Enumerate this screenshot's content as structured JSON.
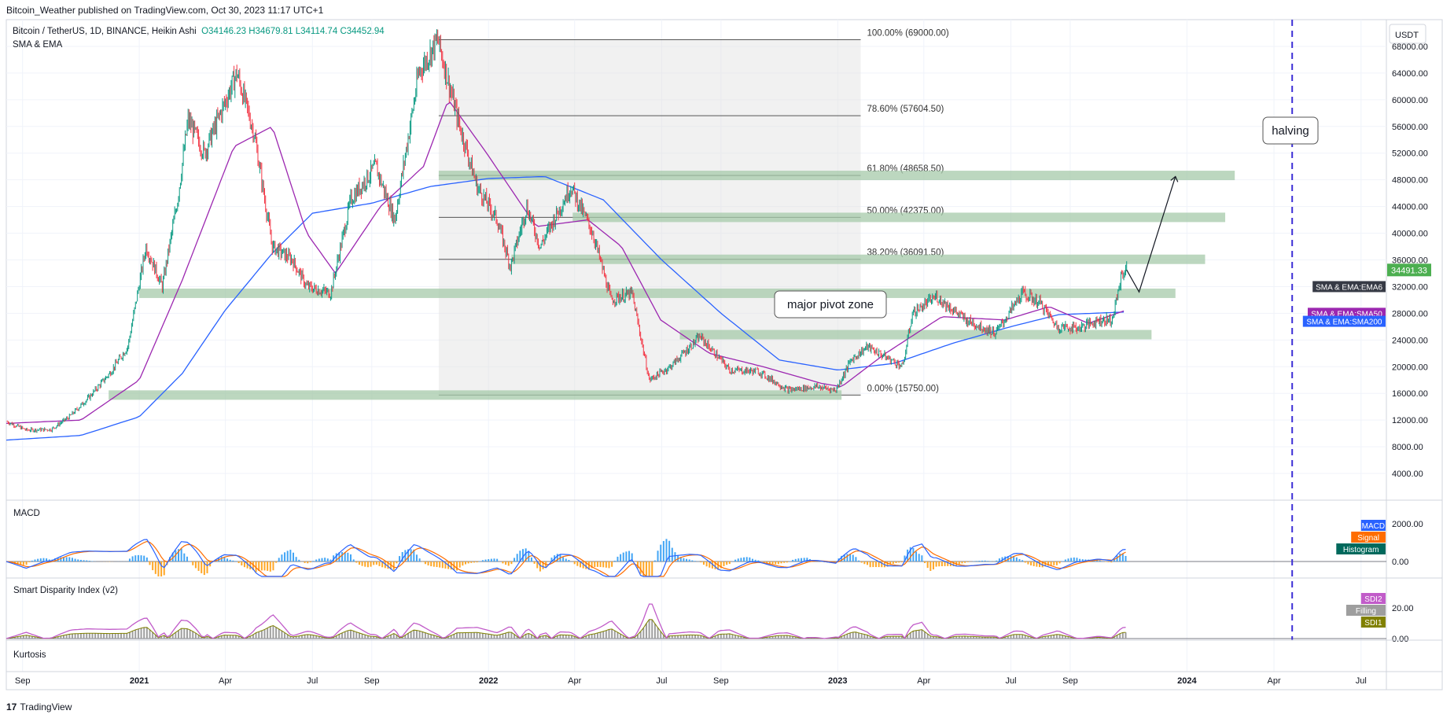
{
  "publisher_line": "Bitcoin_Weather published on TradingView.com, Oct 30, 2023 11:17 UTC+1",
  "legend": {
    "symbol": "Bitcoin / TetherUS, 1D, BINANCE, Heikin Ashi",
    "open": "O34146.23",
    "high": "H34679.81",
    "low": "L34114.74",
    "close": "C34452.94",
    "indicator": "SMA & EMA"
  },
  "currency": "USDT",
  "footer_brand": "TradingView",
  "colors": {
    "up": "#089981",
    "down": "#f23645",
    "sma50": "#9c27b0",
    "sma200": "#2962ff",
    "zone": "#a5c9a9",
    "halving_line": "#3d2fd6",
    "macd": "#2962ff",
    "signal": "#ff6d00",
    "sdi2": "#c15cc9",
    "sdi1": "#808000"
  },
  "chart_data": [
    {
      "type": "line",
      "panel": "price",
      "ylim": [
        0,
        72000
      ],
      "y_ticks": [
        "68000.00",
        "64000.00",
        "60000.00",
        "56000.00",
        "52000.00",
        "48000.00",
        "44000.00",
        "40000.00",
        "36000.00",
        "32000.00",
        "28000.00",
        "24000.00",
        "20000.00",
        "16000.00",
        "12000.00",
        "8000.00",
        "4000.00"
      ],
      "x_ticks": [
        "Sep",
        "2021",
        "Apr",
        "Jul",
        "Sep",
        "2022",
        "Apr",
        "Jul",
        "Sep",
        "2023",
        "Apr",
        "Jul",
        "Sep",
        "2024",
        "Apr",
        "Jul"
      ],
      "x_range": [
        "2020-08-15",
        "2024-07-25"
      ],
      "series": [
        {
          "name": "BTCUSDT",
          "x": [
            "2020-08-15",
            "2020-09-05",
            "2020-10-01",
            "2020-10-20",
            "2020-11-10",
            "2020-12-01",
            "2020-12-20",
            "2021-01-08",
            "2021-01-25",
            "2021-02-10",
            "2021-02-21",
            "2021-03-10",
            "2021-04-13",
            "2021-05-01",
            "2021-05-20",
            "2021-06-10",
            "2021-06-25",
            "2021-07-20",
            "2021-08-10",
            "2021-09-05",
            "2021-09-25",
            "2021-10-20",
            "2021-11-09",
            "2021-11-30",
            "2021-12-20",
            "2022-01-10",
            "2022-01-24",
            "2022-02-10",
            "2022-02-24",
            "2022-03-28",
            "2022-04-20",
            "2022-05-09",
            "2022-05-31",
            "2022-06-18",
            "2022-07-10",
            "2022-08-10",
            "2022-09-10",
            "2022-10-10",
            "2022-11-10",
            "2022-12-10",
            "2022-12-30",
            "2023-01-15",
            "2023-02-01",
            "2023-03-10",
            "2023-03-20",
            "2023-04-14",
            "2023-05-15",
            "2023-06-15",
            "2023-07-13",
            "2023-08-01",
            "2023-08-18",
            "2023-09-10",
            "2023-10-01",
            "2023-10-15",
            "2023-10-25",
            "2023-10-30"
          ],
          "values": [
            11800,
            10500,
            10600,
            12500,
            15500,
            19000,
            23000,
            38000,
            32000,
            45000,
            57000,
            52000,
            64000,
            55000,
            38000,
            36000,
            32000,
            31000,
            45000,
            50000,
            42000,
            64000,
            69000,
            57000,
            47000,
            42000,
            35000,
            44000,
            38000,
            47000,
            40000,
            30000,
            31000,
            18000,
            20000,
            24500,
            19500,
            19300,
            16500,
            17000,
            16500,
            21000,
            23000,
            20000,
            28000,
            30500,
            27000,
            25000,
            31000,
            29500,
            26000,
            25800,
            27000,
            27000,
            34000,
            34452
          ]
        },
        {
          "name": "SMA & EMA:SMA50",
          "x": [
            "2020-08-15",
            "2020-11-01",
            "2021-01-01",
            "2021-02-15",
            "2021-04-10",
            "2021-05-20",
            "2021-06-25",
            "2021-07-25",
            "2021-09-10",
            "2021-10-25",
            "2021-11-20",
            "2021-12-30",
            "2022-02-20",
            "2022-04-15",
            "2022-05-20",
            "2022-06-30",
            "2022-08-20",
            "2022-10-15",
            "2022-12-15",
            "2023-01-05",
            "2023-02-20",
            "2023-04-20",
            "2023-06-25",
            "2023-08-10",
            "2023-09-20",
            "2023-10-30"
          ],
          "values": [
            11500,
            12000,
            18000,
            33000,
            53000,
            56000,
            40000,
            34000,
            44000,
            50000,
            60000,
            52000,
            41000,
            42000,
            38000,
            27000,
            22000,
            20000,
            17500,
            17000,
            22000,
            27500,
            27000,
            29000,
            26500,
            28500
          ]
        },
        {
          "name": "SMA & EMA:SMA200",
          "x": [
            "2020-08-15",
            "2020-11-01",
            "2021-01-01",
            "2021-02-15",
            "2021-04-01",
            "2021-05-20",
            "2021-07-01",
            "2021-09-01",
            "2021-11-01",
            "2022-01-01",
            "2022-03-01",
            "2022-05-01",
            "2022-07-01",
            "2022-09-01",
            "2022-11-01",
            "2023-01-01",
            "2023-03-01",
            "2023-05-01",
            "2023-07-01",
            "2023-08-20",
            "2023-10-30"
          ],
          "values": [
            9000,
            9700,
            12500,
            19000,
            28500,
            37000,
            43000,
            44500,
            47000,
            48200,
            48500,
            45000,
            36000,
            28000,
            21000,
            19500,
            20500,
            23500,
            26000,
            27800,
            28200
          ]
        },
        {
          "name": "SMA & EMA:EMA6",
          "x": [
            "2023-10-30"
          ],
          "values": [
            34491.33
          ]
        }
      ],
      "fibonacci": {
        "x_start": "2021-11-10",
        "x_end": "2023-01-25",
        "levels": [
          {
            "label": "100.00% (69000.00)",
            "value": 69000
          },
          {
            "label": "78.60% (57604.50)",
            "value": 57604.5
          },
          {
            "label": "61.80% (48658.50)",
            "value": 48658.5
          },
          {
            "label": "50.00% (42375.00)",
            "value": 42375
          },
          {
            "label": "38.20% (36091.50)",
            "value": 36091.5
          },
          {
            "label": "0.00% (15750.00)",
            "value": 15750
          }
        ]
      },
      "zones": [
        {
          "x_start": "2021-11-10",
          "x_end": "2024-02-20",
          "value": 48658.5
        },
        {
          "x_start": "2022-03-30",
          "x_end": "2024-02-10",
          "value": 42375
        },
        {
          "x_start": "2022-01-25",
          "x_end": "2024-01-20",
          "value": 36091.5
        },
        {
          "x_start": "2021-01-01",
          "x_end": "2023-12-20",
          "value": 31000
        },
        {
          "x_start": "2022-07-20",
          "x_end": "2023-11-25",
          "value": 24800
        },
        {
          "x_start": "2020-11-30",
          "x_end": "2023-01-05",
          "value": 15750
        }
      ],
      "projection": {
        "x": [
          "2023-10-30",
          "2023-11-12",
          "2023-12-20"
        ],
        "values": [
          34500,
          31200,
          48500
        ]
      },
      "halving_date": "2024-04-20",
      "annotations": [
        "major pivot zone",
        "halving"
      ],
      "price_labels": [
        {
          "text": "34491.33",
          "value": 34491.33,
          "color": "#4caf50"
        },
        {
          "text": "SMA & EMA:EMA6",
          "value": 32000,
          "color": "#363a45"
        },
        {
          "text": "SMA & EMA:SMA50",
          "value": 28000,
          "color": "#9c27b0"
        },
        {
          "text": "SMA & EMA:SMA200",
          "value": 26800,
          "color": "#2962ff"
        }
      ]
    },
    {
      "type": "line",
      "panel": "MACD",
      "title": "MACD",
      "y_ticks": [
        "2000.00",
        "0.00"
      ],
      "legend": [
        "MACD",
        "Signal",
        "Histogram"
      ]
    },
    {
      "type": "line",
      "panel": "Smart Disparity Index",
      "title": "Smart Disparity Index (v2)",
      "y_ticks": [
        "20.00",
        "0.00"
      ],
      "legend": [
        "SDI2",
        "Filling",
        "SDI1"
      ]
    },
    {
      "type": "line",
      "panel": "Kurtosis",
      "title": "Kurtosis"
    }
  ]
}
